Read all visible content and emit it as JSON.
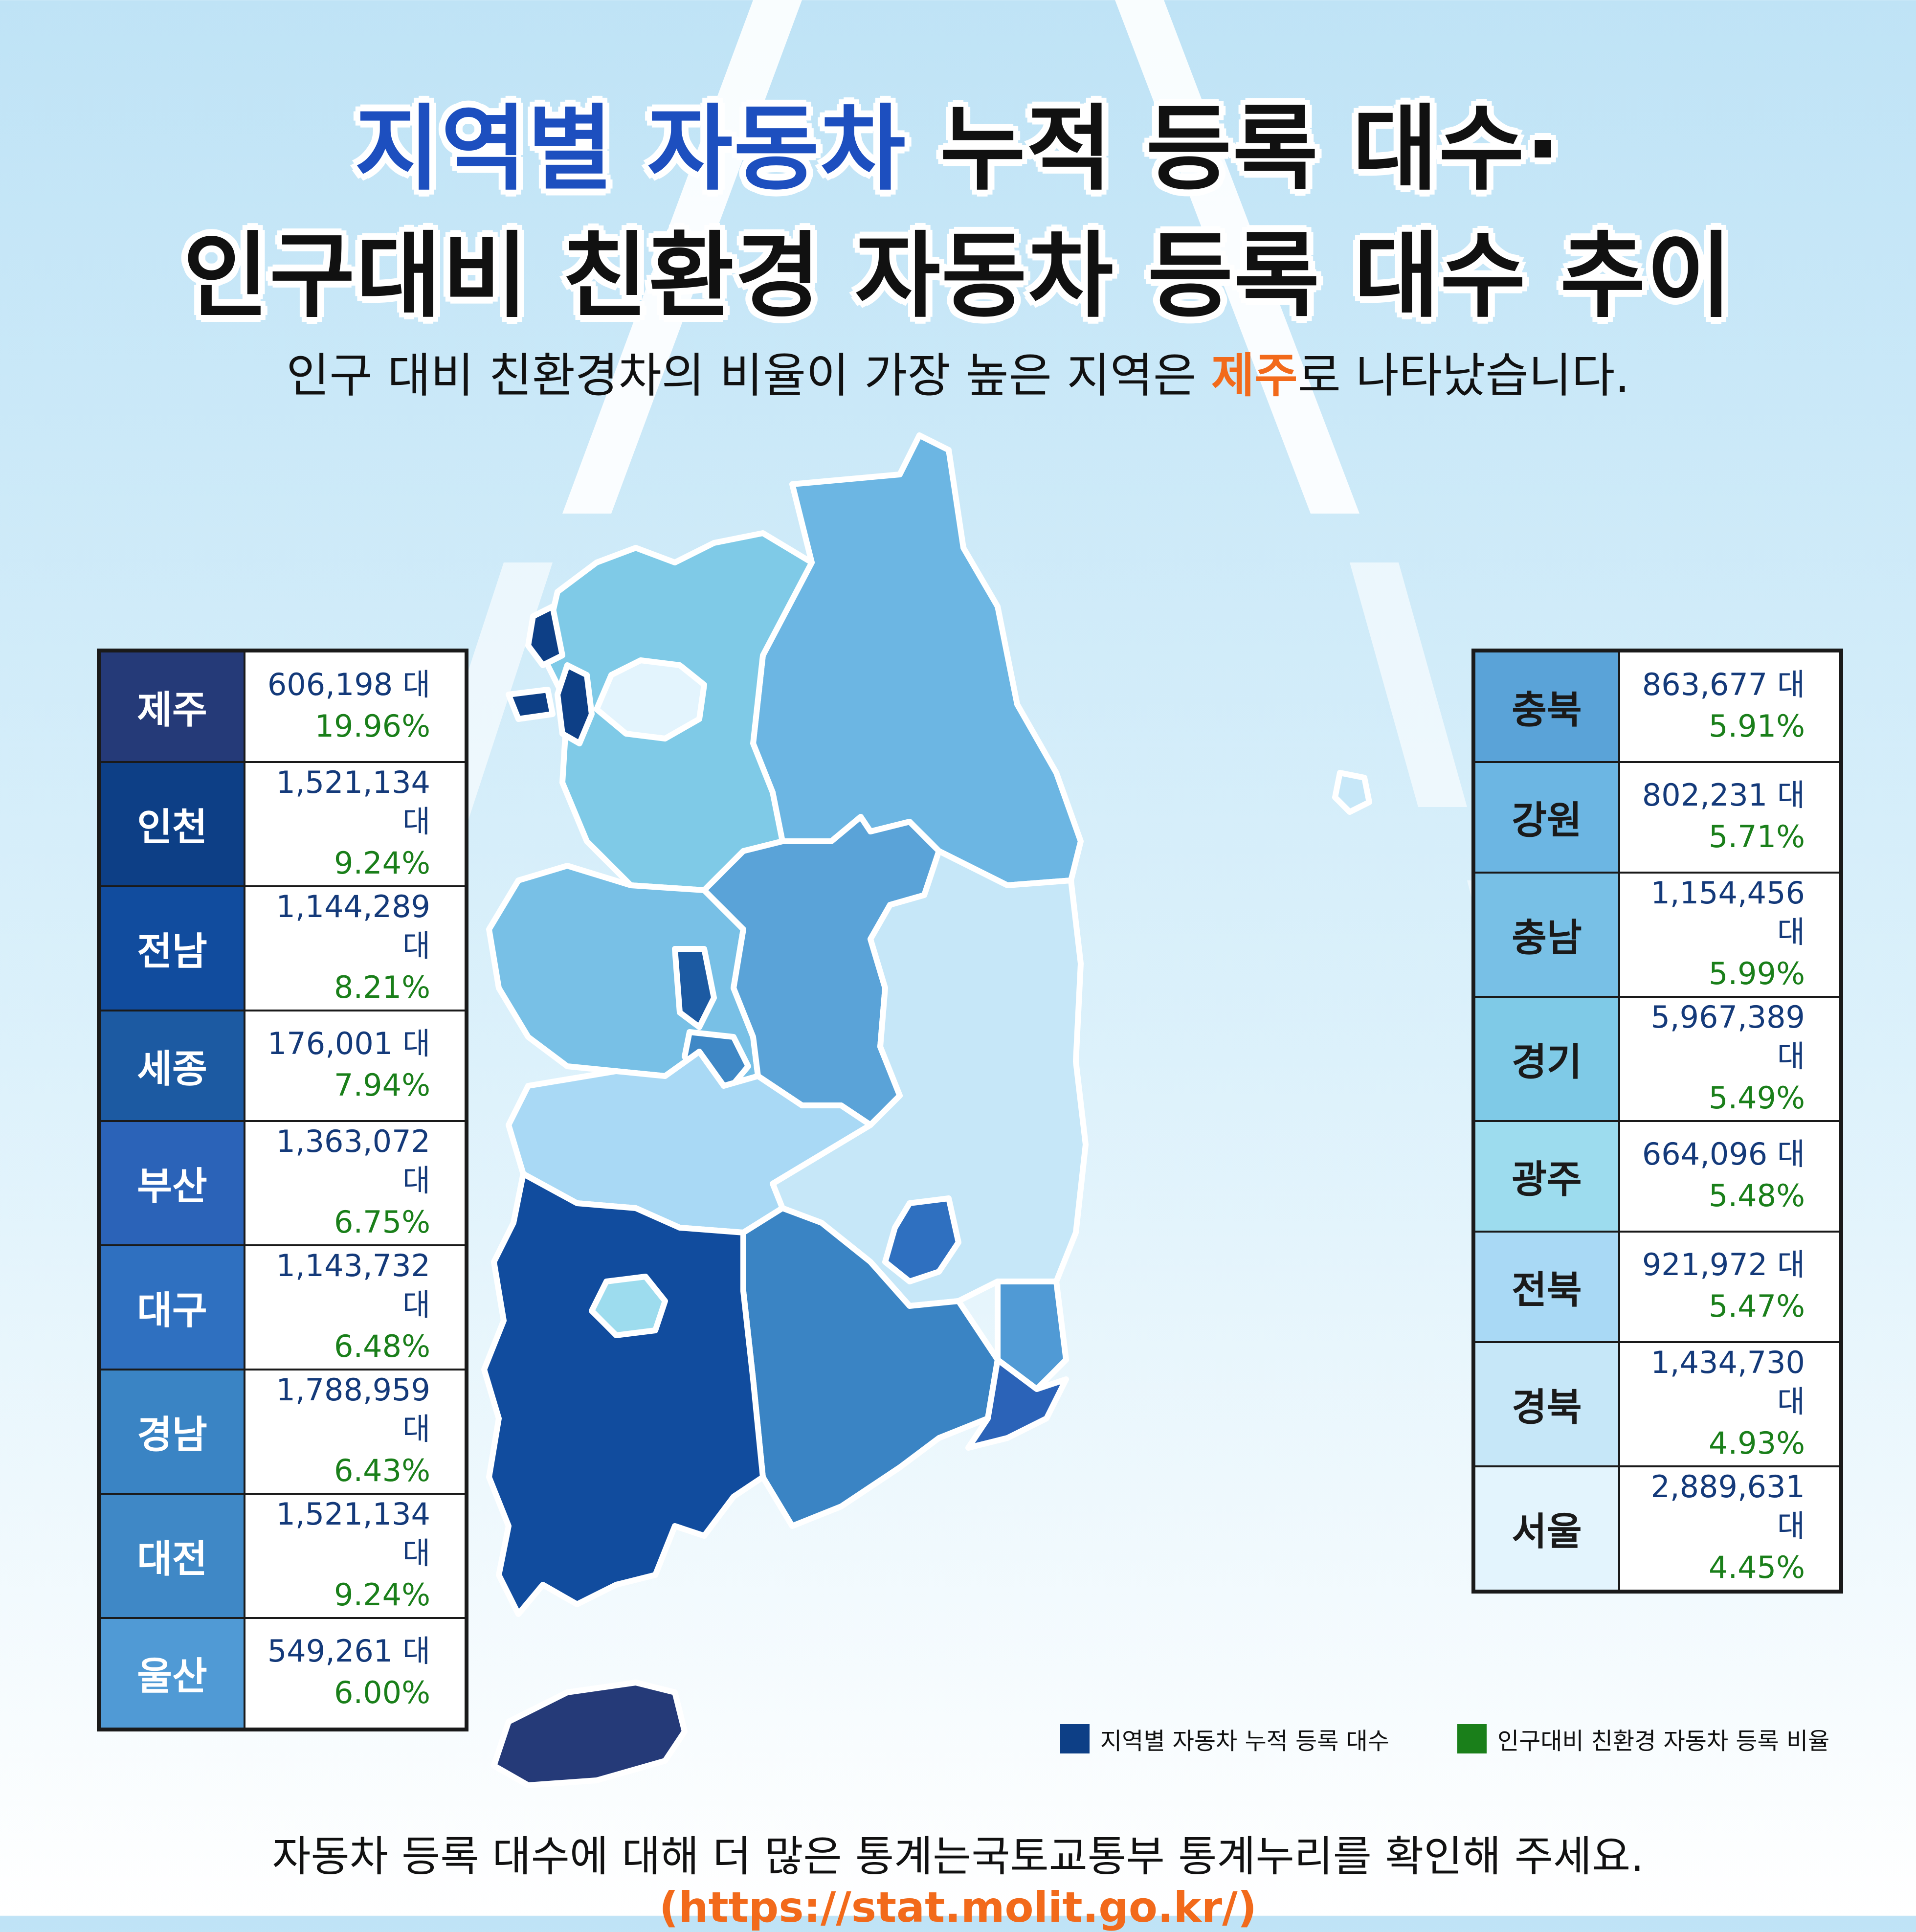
{
  "title": {
    "line1_highlight": "지역별 자동차",
    "line1_rest": " 누적 등록 대수·",
    "line2": "인구대비 친환경 자동차 등록 대수 추이"
  },
  "subtitle": {
    "before": "인구 대비 친환경차의 비율이 가장 높은 지역은 ",
    "highlight": "제주",
    "after": "로 나타났습니다."
  },
  "left_regions": [
    {
      "name": "제주",
      "count": "606,198 대",
      "ratio": "19.96%",
      "color": "#253a78"
    },
    {
      "name": "인천",
      "count": "1,521,134 대",
      "ratio": "9.24%",
      "color": "#0d3f86"
    },
    {
      "name": "전남",
      "count": "1,144,289 대",
      "ratio": "8.21%",
      "color": "#114c9e"
    },
    {
      "name": "세종",
      "count": "176,001 대",
      "ratio": "7.94%",
      "color": "#1c5aa2"
    },
    {
      "name": "부산",
      "count": "1,363,072 대",
      "ratio": "6.75%",
      "color": "#2b63b8"
    },
    {
      "name": "대구",
      "count": "1,143,732 대",
      "ratio": "6.48%",
      "color": "#2f70c0"
    },
    {
      "name": "경남",
      "count": "1,788,959 대",
      "ratio": "6.43%",
      "color": "#3a84c4"
    },
    {
      "name": "대전",
      "count": "1,521,134 대",
      "ratio": "9.24%",
      "color": "#3f88c6"
    },
    {
      "name": "울산",
      "count": "549,261 대",
      "ratio": "6.00%",
      "color": "#509ad5"
    }
  ],
  "right_regions": [
    {
      "name": "충북",
      "count": "863,677 대",
      "ratio": "5.91%",
      "color": "#5aa3d8"
    },
    {
      "name": "강원",
      "count": "802,231 대",
      "ratio": "5.71%",
      "color": "#6cb6e3"
    },
    {
      "name": "충남",
      "count": "1,154,456 대",
      "ratio": "5.99%",
      "color": "#78c0e6"
    },
    {
      "name": "경기",
      "count": "5,967,389 대",
      "ratio": "5.49%",
      "color": "#7fcae7"
    },
    {
      "name": "광주",
      "count": "664,096 대",
      "ratio": "5.48%",
      "color": "#9ddcee"
    },
    {
      "name": "전북",
      "count": "921,972 대",
      "ratio": "5.47%",
      "color": "#a9d9f5"
    },
    {
      "name": "경북",
      "count": "1,434,730 대",
      "ratio": "4.93%",
      "color": "#c6e7f8"
    },
    {
      "name": "서울",
      "count": "2,889,631 대",
      "ratio": "4.45%",
      "color": "#e3f4fd"
    }
  ],
  "legend": {
    "count_label": "지역별 자동차 누적 등록 대수",
    "count_color": "#0d3f86",
    "ratio_label": "인구대비 친환경 자동차 등록 비율",
    "ratio_color": "#1a7f1a"
  },
  "footer": {
    "text": "자동차 등록 대수에 대해 더 많은 통계는국토교통부 통계누리를 확인해 주세요. ",
    "link": "(https://stat.molit.go.kr/)"
  }
}
